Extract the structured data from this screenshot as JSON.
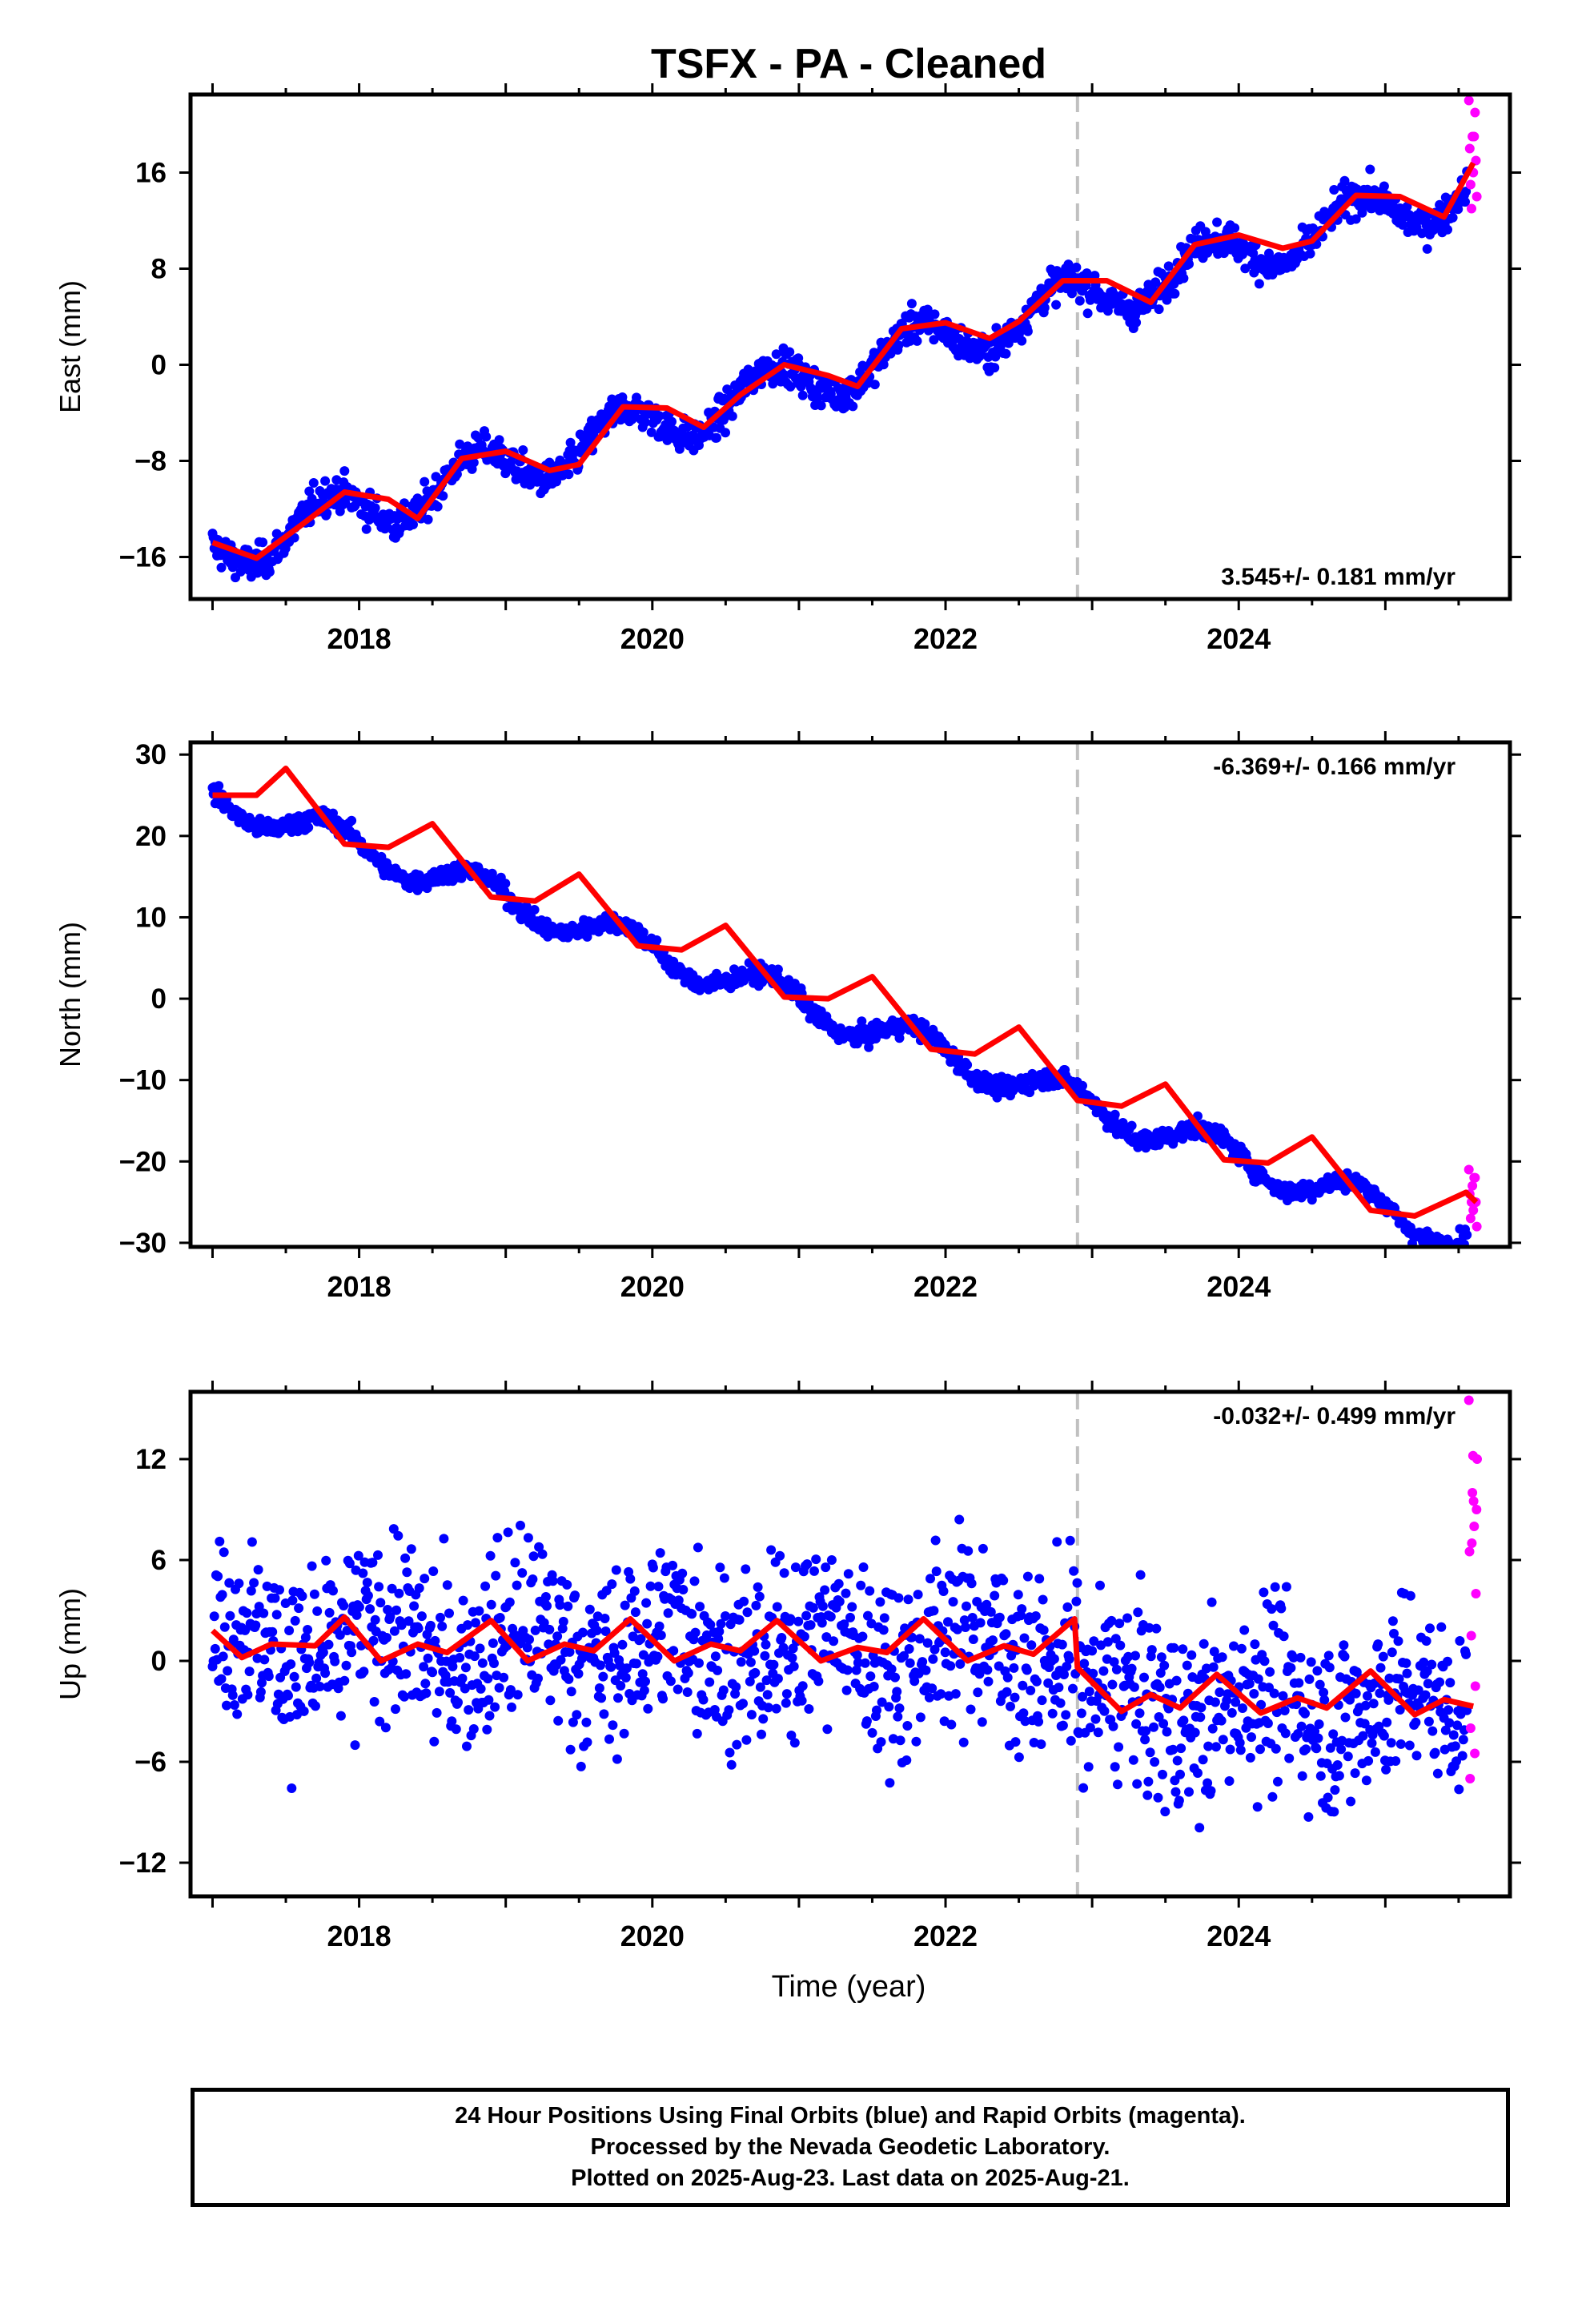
{
  "title": "TSFX  - PA - Cleaned",
  "colors": {
    "final_orbits": "#0000ff",
    "rapid_orbits": "#ff00ff",
    "model_fit": "#ff0000",
    "event_line": "#c0c0c0"
  },
  "x_axis": {
    "label": "Time (year)",
    "range": [
      2016.85,
      2025.85
    ],
    "ticks": [
      2018,
      2020,
      2022,
      2024
    ],
    "tick_labels": [
      "2018",
      "2020",
      "2022",
      "2024"
    ],
    "event_line_year": 2022.9
  },
  "chart_data": [
    {
      "type": "scatter",
      "component": "east",
      "ylabel": "East (mm)",
      "ylim": [
        -19.5,
        22.5
      ],
      "yticks": [
        16,
        8,
        0,
        -8,
        -16
      ],
      "ytick_labels": [
        "16",
        "8",
        "0",
        "−8",
        "−16"
      ],
      "rate_label": "3.545+/- 0.181 mm/yr",
      "rate_position": "bottom-right",
      "trend": {
        "start_year": 2017.0,
        "start_value": -15.6,
        "rate": 3.545,
        "seasonal_amplitude": 2.0,
        "seasonal_phase": 0.55,
        "scatter": 1.0
      },
      "model_fit": [
        [
          2017.0,
          -14.8
        ],
        [
          2017.3,
          -16.1
        ],
        [
          2017.6,
          -13.4
        ],
        [
          2017.9,
          -10.6
        ],
        [
          2018.2,
          -11.2
        ],
        [
          2018.4,
          -12.8
        ],
        [
          2018.7,
          -7.8
        ],
        [
          2019.0,
          -7.2
        ],
        [
          2019.3,
          -8.8
        ],
        [
          2019.5,
          -8.3
        ],
        [
          2019.8,
          -3.5
        ],
        [
          2020.1,
          -3.6
        ],
        [
          2020.35,
          -5.2
        ],
        [
          2020.6,
          -2.5
        ],
        [
          2020.9,
          0.0
        ],
        [
          2021.2,
          -0.9
        ],
        [
          2021.4,
          -1.8
        ],
        [
          2021.7,
          3.0
        ],
        [
          2022.0,
          3.5
        ],
        [
          2022.3,
          2.2
        ],
        [
          2022.5,
          3.6
        ],
        [
          2022.8,
          7.0
        ],
        [
          2023.1,
          7.0
        ],
        [
          2023.4,
          5.2
        ],
        [
          2023.7,
          10.0
        ],
        [
          2024.0,
          10.8
        ],
        [
          2024.3,
          9.7
        ],
        [
          2024.5,
          10.3
        ],
        [
          2024.8,
          14.1
        ],
        [
          2025.1,
          14.0
        ],
        [
          2025.4,
          12.3
        ],
        [
          2025.6,
          16.8
        ]
      ],
      "rapid_points": {
        "year_start": 2025.57,
        "year_end": 2025.63,
        "values": [
          22,
          21,
          19,
          18,
          17,
          16,
          15,
          14,
          19,
          13
        ]
      }
    },
    {
      "type": "scatter",
      "component": "north",
      "ylabel": "North (mm)",
      "ylim": [
        -30.5,
        31.5
      ],
      "yticks": [
        30,
        20,
        10,
        0,
        -10,
        -20,
        -30
      ],
      "ytick_labels": [
        "30",
        "20",
        "10",
        "0",
        "−10",
        "−20",
        "−30"
      ],
      "rate_label": "-6.369+/- 0.166 mm/yr",
      "rate_position": "top-right",
      "trend": {
        "start_year": 2017.0,
        "start_value": 25.0,
        "rate": -6.369,
        "seasonal_amplitude": 2.0,
        "seasonal_phase": 0.55,
        "scatter": 0.8
      },
      "model_fit": [
        [
          2017.0,
          25.0
        ],
        [
          2017.3,
          25.0
        ],
        [
          2017.5,
          28.3
        ],
        [
          2017.9,
          19.0
        ],
        [
          2018.2,
          18.6
        ],
        [
          2018.5,
          21.5
        ],
        [
          2018.9,
          12.5
        ],
        [
          2019.2,
          12.0
        ],
        [
          2019.5,
          15.3
        ],
        [
          2019.9,
          6.5
        ],
        [
          2020.2,
          6.0
        ],
        [
          2020.5,
          9.0
        ],
        [
          2020.9,
          0.2
        ],
        [
          2021.2,
          0.0
        ],
        [
          2021.5,
          2.7
        ],
        [
          2021.9,
          -6.2
        ],
        [
          2022.2,
          -6.8
        ],
        [
          2022.5,
          -3.5
        ],
        [
          2022.9,
          -12.5
        ],
        [
          2023.2,
          -13.2
        ],
        [
          2023.5,
          -10.5
        ],
        [
          2023.9,
          -19.8
        ],
        [
          2024.2,
          -20.2
        ],
        [
          2024.5,
          -17.0
        ],
        [
          2024.9,
          -26.0
        ],
        [
          2025.2,
          -26.7
        ],
        [
          2025.55,
          -23.8
        ],
        [
          2025.62,
          -25.0
        ]
      ],
      "rapid_points": {
        "year_start": 2025.57,
        "year_end": 2025.63,
        "values": [
          -21,
          -22,
          -23,
          -24,
          -25,
          -26,
          -27,
          -28,
          -22,
          -25
        ]
      }
    },
    {
      "type": "scatter",
      "component": "up",
      "ylabel": "Up (mm)",
      "ylim": [
        -14,
        16
      ],
      "yticks": [
        12,
        6,
        0,
        -6,
        -12
      ],
      "ytick_labels": [
        "12",
        "6",
        "0",
        "−6",
        "−12"
      ],
      "rate_label": "-0.032+/- 0.499 mm/yr",
      "rate_position": "top-right",
      "trend": {
        "start_year": 2017.0,
        "start_value": 1.0,
        "rate": -0.032,
        "seasonal_amplitude": 1.2,
        "seasonal_phase": 0.9,
        "scatter": 3.8,
        "offset_after_event": -3.4
      },
      "model_fit": [
        [
          2017.0,
          1.8
        ],
        [
          2017.2,
          0.2
        ],
        [
          2017.4,
          1.0
        ],
        [
          2017.7,
          0.9
        ],
        [
          2017.9,
          2.6
        ],
        [
          2018.15,
          0.0
        ],
        [
          2018.4,
          1.0
        ],
        [
          2018.6,
          0.5
        ],
        [
          2018.9,
          2.4
        ],
        [
          2019.15,
          0.0
        ],
        [
          2019.4,
          1.0
        ],
        [
          2019.6,
          0.6
        ],
        [
          2019.85,
          2.5
        ],
        [
          2020.15,
          0.0
        ],
        [
          2020.4,
          1.0
        ],
        [
          2020.6,
          0.6
        ],
        [
          2020.85,
          2.4
        ],
        [
          2021.15,
          0.0
        ],
        [
          2021.4,
          0.8
        ],
        [
          2021.6,
          0.5
        ],
        [
          2021.85,
          2.5
        ],
        [
          2022.15,
          0.0
        ],
        [
          2022.4,
          0.9
        ],
        [
          2022.6,
          0.4
        ],
        [
          2022.88,
          2.5
        ],
        [
          2022.9,
          -0.4
        ],
        [
          2023.2,
          -3.0
        ],
        [
          2023.4,
          -2.0
        ],
        [
          2023.6,
          -2.8
        ],
        [
          2023.85,
          -0.8
        ],
        [
          2024.15,
          -3.1
        ],
        [
          2024.4,
          -2.2
        ],
        [
          2024.6,
          -2.8
        ],
        [
          2024.9,
          -0.6
        ],
        [
          2025.2,
          -3.2
        ],
        [
          2025.4,
          -2.3
        ],
        [
          2025.6,
          -2.7
        ]
      ],
      "rapid_points": {
        "year_start": 2025.57,
        "year_end": 2025.63,
        "values": [
          15.5,
          12.2,
          12.0,
          10.0,
          9.0,
          7.0,
          4.0,
          1.5,
          -1.5,
          -4.0,
          -5.5,
          -7.0,
          8.0,
          6.5,
          9.5
        ]
      }
    }
  ],
  "caption": [
    "24 Hour Positions Using Final Orbits (blue) and Rapid Orbits (magenta).",
    "Processed by the Nevada Geodetic Laboratory.",
    "Plotted on 2025-Aug-23. Last data on 2025-Aug-21."
  ]
}
